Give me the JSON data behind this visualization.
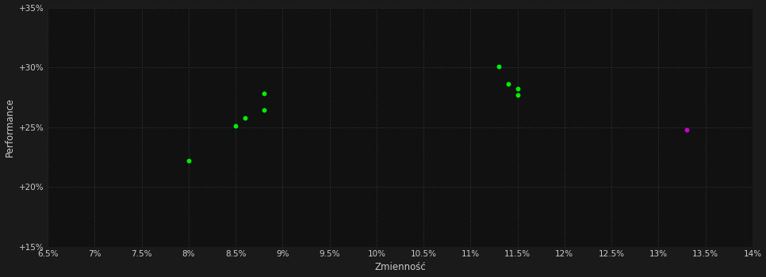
{
  "background_color": "#1a1a1a",
  "plot_bg_color": "#111111",
  "grid_color": "#3a3a3a",
  "text_color": "#cccccc",
  "xlabel": "Zmienność",
  "ylabel": "Performance",
  "xlim": [
    0.065,
    0.14
  ],
  "ylim": [
    0.15,
    0.35
  ],
  "xticks": [
    0.065,
    0.07,
    0.075,
    0.08,
    0.085,
    0.09,
    0.095,
    0.1,
    0.105,
    0.11,
    0.115,
    0.12,
    0.125,
    0.13,
    0.135,
    0.14
  ],
  "yticks": [
    0.15,
    0.2,
    0.25,
    0.3,
    0.35
  ],
  "green_points": [
    [
      0.08,
      0.222
    ],
    [
      0.085,
      0.251
    ],
    [
      0.086,
      0.258
    ],
    [
      0.088,
      0.278
    ],
    [
      0.088,
      0.264
    ],
    [
      0.113,
      0.301
    ],
    [
      0.114,
      0.286
    ],
    [
      0.115,
      0.282
    ],
    [
      0.115,
      0.277
    ]
  ],
  "magenta_points": [
    [
      0.133,
      0.248
    ]
  ],
  "point_size": 18,
  "green_color": "#00ee00",
  "magenta_color": "#cc00cc"
}
